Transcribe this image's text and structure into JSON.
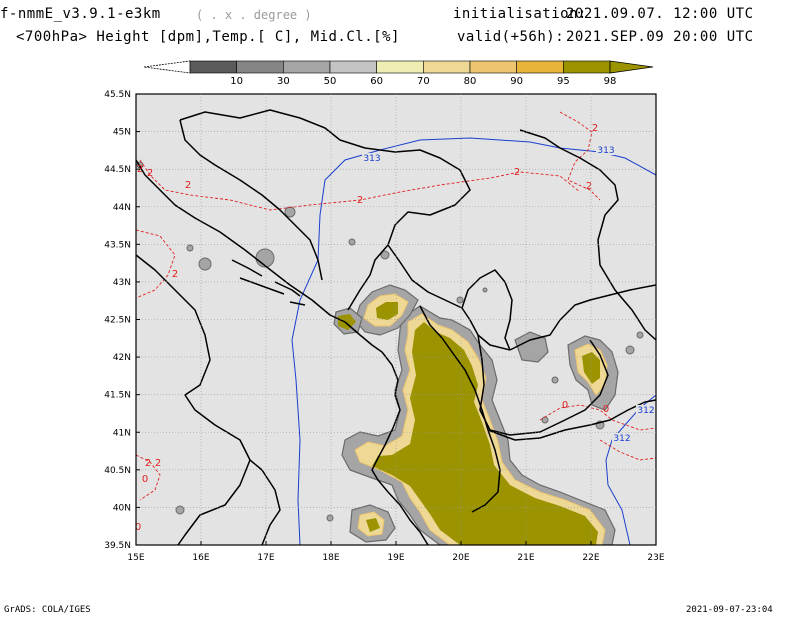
{
  "header": {
    "model": "f-nmmE_v3.9.1-e3km",
    "units": "( . x . degree )",
    "init_label": "initialisation:",
    "init_value": "2021.09.07.  12:00 UTC",
    "fields": "<700hPa> Height [dpm],Temp.[ C], Mid.Cl.[%]",
    "valid_label": "valid(+56h):",
    "valid_value": "2021.SEP.09  20:00 UTC"
  },
  "colorbar": {
    "levels": [
      "10",
      "30",
      "50",
      "60",
      "70",
      "80",
      "90",
      "95",
      "98"
    ],
    "colors": [
      "#5a5a5a",
      "#858585",
      "#a5a5a5",
      "#c4c4c4",
      "#eeeeb4",
      "#edd896",
      "#eec46e",
      "#e8b53a",
      "#9b9400"
    ]
  },
  "map": {
    "lon_labels": [
      "15E",
      "16E",
      "17E",
      "18E",
      "19E",
      "20E",
      "21E",
      "22E",
      "23E"
    ],
    "lat_labels": [
      "45.5N",
      "45N",
      "44.5N",
      "44N",
      "43.5N",
      "43N",
      "42.5N",
      "42N",
      "41.5N",
      "41N",
      "40.5N",
      "40N",
      "39.5N"
    ],
    "height_labels": [
      "313",
      "313",
      "312",
      "312"
    ],
    "temp_labels": [
      "2",
      "2",
      "2",
      "2",
      "2",
      "2",
      "2",
      "2",
      "2",
      "2",
      "0",
      "0",
      "0",
      "0"
    ],
    "colors": {
      "background": "#e3e3e3",
      "border": "#000000",
      "height_contour": "#1a3fd0",
      "temp_contour": "#e02020",
      "cloud_core": "#9b9400"
    }
  },
  "footer": {
    "left": "GrADS: COLA/IGES",
    "right": "2021-09-07-23:04"
  }
}
